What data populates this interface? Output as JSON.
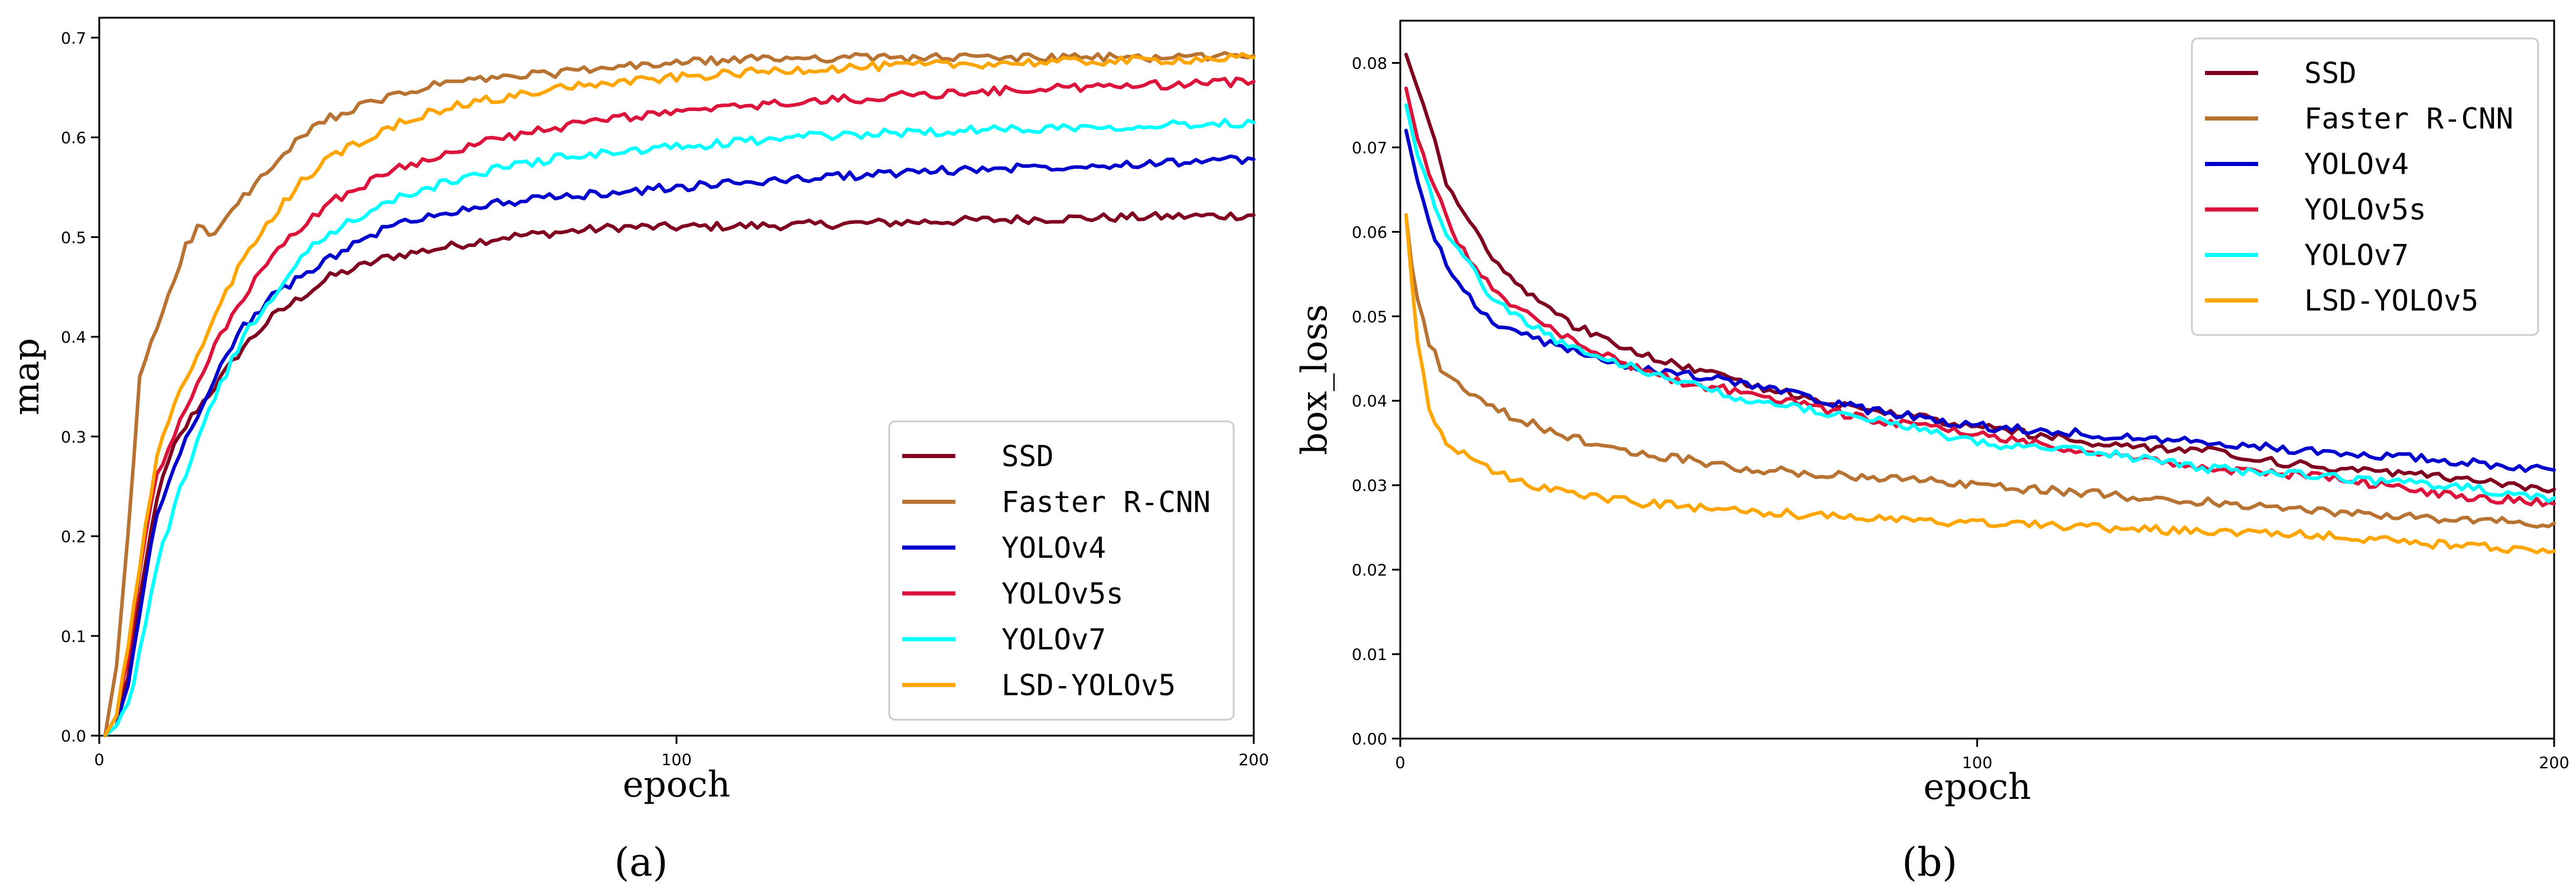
{
  "chart_data": [
    {
      "type": "line",
      "panel_label": "(a)",
      "xlabel": "epoch",
      "ylabel": "map",
      "xlim": [
        0,
        200
      ],
      "ylim": [
        0,
        0.72
      ],
      "x_ticks": [
        0,
        100,
        200
      ],
      "x_tick_labels": [
        "0",
        "100",
        "200"
      ],
      "y_ticks": [
        0,
        0.1,
        0.2,
        0.3,
        0.4,
        0.5,
        0.6,
        0.7
      ],
      "y_tick_labels": [
        "0.0",
        "0.1",
        "0.2",
        "0.3",
        "0.4",
        "0.5",
        "0.6",
        "0.7"
      ],
      "grid": false,
      "legend_position": "bottom-right",
      "series": [
        {
          "name": "SSD",
          "color": "#800020",
          "x": [
            1,
            3,
            5,
            8,
            10,
            13,
            16,
            20,
            25,
            30,
            35,
            40,
            50,
            60,
            70,
            80,
            90,
            100,
            120,
            140,
            160,
            180,
            200
          ],
          "values": [
            0,
            0.02,
            0.06,
            0.17,
            0.24,
            0.29,
            0.32,
            0.35,
            0.39,
            0.42,
            0.44,
            0.46,
            0.48,
            0.49,
            0.5,
            0.505,
            0.51,
            0.51,
            0.512,
            0.515,
            0.518,
            0.52,
            0.522
          ]
        },
        {
          "name": "Faster R-CNN",
          "color": "#B87333",
          "x": [
            1,
            3,
            5,
            7,
            10,
            13,
            15,
            17,
            19,
            20,
            22,
            25,
            30,
            35,
            40,
            50,
            60,
            70,
            80,
            90,
            100,
            120,
            140,
            160,
            180,
            200
          ],
          "values": [
            0,
            0.07,
            0.2,
            0.36,
            0.41,
            0.46,
            0.49,
            0.51,
            0.505,
            0.5,
            0.52,
            0.54,
            0.57,
            0.6,
            0.62,
            0.64,
            0.655,
            0.66,
            0.665,
            0.67,
            0.675,
            0.68,
            0.68,
            0.68,
            0.68,
            0.682
          ]
        },
        {
          "name": "YOLOv4",
          "color": "#0000CD",
          "x": [
            1,
            3,
            5,
            8,
            10,
            13,
            16,
            20,
            25,
            30,
            35,
            40,
            50,
            60,
            70,
            80,
            90,
            100,
            120,
            140,
            160,
            180,
            200
          ],
          "values": [
            0,
            0.01,
            0.05,
            0.16,
            0.22,
            0.27,
            0.31,
            0.36,
            0.41,
            0.44,
            0.46,
            0.48,
            0.51,
            0.525,
            0.535,
            0.54,
            0.545,
            0.55,
            0.558,
            0.565,
            0.57,
            0.574,
            0.578
          ]
        },
        {
          "name": "YOLOv5s",
          "color": "#DC143C",
          "x": [
            1,
            3,
            5,
            8,
            10,
            13,
            16,
            20,
            25,
            30,
            35,
            40,
            50,
            60,
            70,
            80,
            90,
            100,
            120,
            140,
            160,
            180,
            200
          ],
          "values": [
            0,
            0.02,
            0.08,
            0.2,
            0.26,
            0.3,
            0.34,
            0.39,
            0.44,
            0.48,
            0.51,
            0.535,
            0.565,
            0.585,
            0.6,
            0.61,
            0.62,
            0.625,
            0.635,
            0.642,
            0.648,
            0.652,
            0.656
          ]
        },
        {
          "name": "YOLOv7",
          "color": "#00FFFF",
          "x": [
            1,
            3,
            5,
            8,
            10,
            13,
            16,
            20,
            25,
            30,
            35,
            40,
            50,
            60,
            70,
            80,
            90,
            100,
            120,
            140,
            160,
            180,
            200
          ],
          "values": [
            0,
            0.01,
            0.03,
            0.11,
            0.17,
            0.23,
            0.28,
            0.34,
            0.4,
            0.44,
            0.48,
            0.505,
            0.535,
            0.555,
            0.57,
            0.58,
            0.585,
            0.59,
            0.6,
            0.605,
            0.609,
            0.612,
            0.615
          ]
        },
        {
          "name": "LSD-YOLOv5",
          "color": "#FFA500",
          "x": [
            1,
            3,
            5,
            8,
            10,
            13,
            16,
            20,
            25,
            30,
            35,
            40,
            50,
            60,
            70,
            80,
            90,
            100,
            120,
            140,
            160,
            180,
            200
          ],
          "values": [
            0,
            0.02,
            0.09,
            0.21,
            0.28,
            0.33,
            0.37,
            0.42,
            0.48,
            0.52,
            0.555,
            0.58,
            0.61,
            0.63,
            0.64,
            0.65,
            0.655,
            0.66,
            0.668,
            0.672,
            0.675,
            0.677,
            0.68
          ]
        }
      ]
    },
    {
      "type": "line",
      "panel_label": "(b)",
      "xlabel": "epoch",
      "ylabel": "box_loss",
      "xlim": [
        0,
        200
      ],
      "ylim": [
        0,
        0.085
      ],
      "x_ticks": [
        0,
        100,
        200
      ],
      "x_tick_labels": [
        "0",
        "100",
        "200"
      ],
      "y_ticks": [
        0,
        0.01,
        0.02,
        0.03,
        0.04,
        0.05,
        0.06,
        0.07,
        0.08
      ],
      "y_tick_labels": [
        "0.00",
        "0.01",
        "0.02",
        "0.03",
        "0.04",
        "0.05",
        "0.06",
        "0.07",
        "0.08"
      ],
      "grid": false,
      "legend_position": "top-right",
      "series": [
        {
          "name": "SSD",
          "color": "#800020",
          "x": [
            1,
            2,
            3,
            5,
            8,
            10,
            15,
            20,
            30,
            40,
            50,
            60,
            80,
            100,
            120,
            140,
            160,
            180,
            200
          ],
          "values": [
            0.081,
            0.079,
            0.077,
            0.073,
            0.066,
            0.063,
            0.058,
            0.054,
            0.049,
            0.046,
            0.044,
            0.042,
            0.039,
            0.037,
            0.035,
            0.034,
            0.032,
            0.031,
            0.0295
          ]
        },
        {
          "name": "Faster R-CNN",
          "color": "#B87333",
          "x": [
            1,
            2,
            3,
            5,
            7,
            10,
            15,
            20,
            30,
            40,
            50,
            60,
            80,
            100,
            120,
            140,
            160,
            180,
            200
          ],
          "values": [
            0.062,
            0.056,
            0.052,
            0.047,
            0.044,
            0.042,
            0.0395,
            0.038,
            0.0355,
            0.034,
            0.033,
            0.032,
            0.031,
            0.03,
            0.029,
            0.028,
            0.027,
            0.026,
            0.0255
          ]
        },
        {
          "name": "YOLOv4",
          "color": "#0000CD",
          "x": [
            1,
            2,
            3,
            5,
            8,
            10,
            15,
            20,
            30,
            40,
            50,
            60,
            80,
            100,
            120,
            140,
            160,
            180,
            200
          ],
          "values": [
            0.072,
            0.069,
            0.066,
            0.061,
            0.056,
            0.054,
            0.05,
            0.048,
            0.046,
            0.044,
            0.043,
            0.042,
            0.039,
            0.037,
            0.036,
            0.035,
            0.034,
            0.033,
            0.0318
          ]
        },
        {
          "name": "YOLOv5s",
          "color": "#DC143C",
          "x": [
            1,
            2,
            3,
            5,
            8,
            10,
            15,
            20,
            30,
            40,
            50,
            60,
            80,
            100,
            120,
            140,
            160,
            180,
            200
          ],
          "values": [
            0.077,
            0.074,
            0.071,
            0.067,
            0.062,
            0.059,
            0.054,
            0.051,
            0.047,
            0.044,
            0.042,
            0.041,
            0.038,
            0.036,
            0.034,
            0.032,
            0.031,
            0.029,
            0.0278
          ]
        },
        {
          "name": "YOLOv7",
          "color": "#00FFFF",
          "x": [
            1,
            2,
            3,
            5,
            8,
            10,
            15,
            20,
            30,
            40,
            50,
            60,
            80,
            100,
            120,
            140,
            160,
            180,
            200
          ],
          "values": [
            0.075,
            0.072,
            0.069,
            0.065,
            0.06,
            0.058,
            0.053,
            0.05,
            0.046,
            0.044,
            0.042,
            0.04,
            0.038,
            0.035,
            0.034,
            0.032,
            0.031,
            0.03,
            0.0285
          ]
        },
        {
          "name": "LSD-YOLOv5",
          "color": "#FFA500",
          "x": [
            1,
            2,
            3,
            4,
            5,
            7,
            10,
            15,
            20,
            30,
            40,
            50,
            60,
            80,
            100,
            120,
            140,
            160,
            180,
            200
          ],
          "values": [
            0.062,
            0.054,
            0.047,
            0.043,
            0.039,
            0.036,
            0.034,
            0.032,
            0.0305,
            0.029,
            0.028,
            0.0275,
            0.027,
            0.026,
            0.0255,
            0.025,
            0.0245,
            0.024,
            0.023,
            0.0222
          ]
        }
      ]
    }
  ]
}
